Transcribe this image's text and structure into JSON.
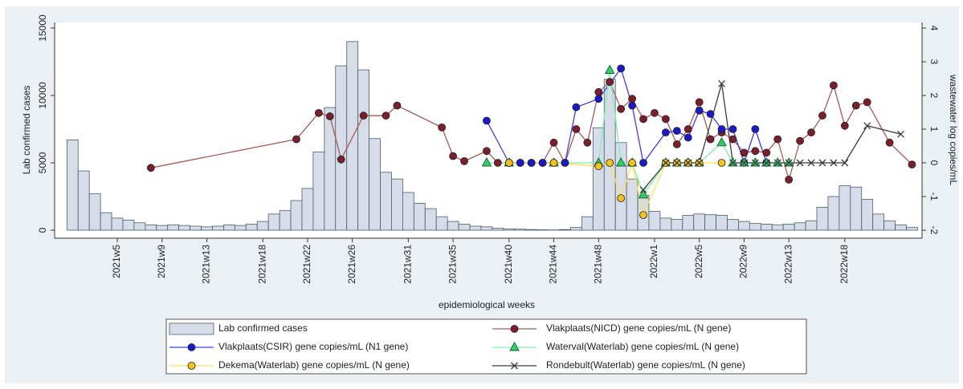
{
  "chart_data": {
    "type": "combo",
    "xlabel": "epidemiological weeks",
    "ylabel": "Lab confirmed cases",
    "y2label": "wastewater log copies/mL",
    "xlim": [
      -0.6,
      76.9
    ],
    "xticks": [
      {
        "value": 5,
        "label": "2021w5"
      },
      {
        "value": 9,
        "label": "2021w9"
      },
      {
        "value": 13,
        "label": "2021w13"
      },
      {
        "value": 18,
        "label": "2021w18"
      },
      {
        "value": 22,
        "label": "2021w22"
      },
      {
        "value": 26,
        "label": "2021w26"
      },
      {
        "value": 31,
        "label": "2021w31"
      },
      {
        "value": 35,
        "label": "2021w35"
      },
      {
        "value": 40,
        "label": "2021w40"
      },
      {
        "value": 44,
        "label": "2021w44"
      },
      {
        "value": 48,
        "label": "2021w48"
      },
      {
        "value": 53,
        "label": "2022w1"
      },
      {
        "value": 57,
        "label": "2022w5"
      },
      {
        "value": 61,
        "label": "2022w9"
      },
      {
        "value": 65,
        "label": "2022w13"
      },
      {
        "value": 70,
        "label": "2022w18"
      }
    ],
    "ylim": [
      0,
      15000
    ],
    "yticks": [
      0,
      5000,
      10000,
      15000
    ],
    "y2lim": [
      -2,
      4
    ],
    "y2ticks": [
      -2,
      -1,
      0,
      1,
      2,
      3,
      4
    ],
    "series": [
      {
        "name": "Lab confirmed cases",
        "type": "bar",
        "color": "#d6dde8",
        "edge_color": "#4d5b6b",
        "x": [
          1,
          2,
          3,
          4,
          5,
          6,
          7,
          8,
          9,
          10,
          11,
          12,
          13,
          14,
          15,
          16,
          17,
          18,
          19,
          20,
          21,
          22,
          23,
          24,
          25,
          26,
          27,
          28,
          29,
          30,
          31,
          32,
          33,
          34,
          35,
          36,
          37,
          38,
          39,
          40,
          41,
          42,
          43,
          44,
          45,
          46,
          47,
          48,
          49,
          50,
          51,
          52,
          53,
          54,
          55,
          56,
          57,
          58,
          59,
          60,
          61,
          62,
          63,
          64,
          65,
          66,
          67,
          68,
          69,
          70,
          71,
          72,
          73,
          74,
          75,
          76
        ],
        "values": [
          6700,
          4400,
          2700,
          1300,
          900,
          750,
          550,
          400,
          350,
          400,
          350,
          300,
          250,
          300,
          400,
          350,
          450,
          650,
          1200,
          1450,
          2200,
          3100,
          5800,
          9100,
          12200,
          14000,
          11900,
          6800,
          4300,
          3800,
          2800,
          2000,
          1600,
          1000,
          650,
          450,
          300,
          250,
          150,
          100,
          80,
          50,
          30,
          20,
          50,
          200,
          1000,
          7600,
          11200,
          6500,
          3800,
          2600,
          1400,
          900,
          800,
          1100,
          1200,
          1150,
          1100,
          800,
          650,
          500,
          450,
          400,
          450,
          550,
          700,
          1700,
          2500,
          3300,
          3200,
          2300,
          1200,
          700,
          400,
          200
        ]
      },
      {
        "name": "Vlakplaats(NICD) gene copies/mL (N gene)",
        "type": "line",
        "axis": "y2",
        "color": "#a65a58",
        "marker": "circle",
        "marker_color": "#7b1f2c",
        "x": [
          8,
          21,
          23,
          24,
          25,
          27,
          29,
          30,
          34,
          35,
          36,
          38,
          39,
          40,
          41,
          42,
          43,
          44,
          45,
          46,
          47,
          48,
          49,
          50,
          51,
          52,
          53,
          54,
          55,
          56,
          57,
          58,
          59,
          60,
          61,
          62,
          63,
          64,
          65,
          66,
          67,
          68,
          69,
          70,
          71,
          72,
          74,
          76
        ],
        "values": [
          -0.15,
          0.7,
          1.48,
          1.38,
          0.1,
          1.4,
          1.4,
          1.7,
          1.05,
          0.2,
          0.05,
          0.35,
          0,
          0,
          0,
          0,
          0,
          0.6,
          0,
          1.0,
          0.6,
          2.1,
          2.4,
          1.6,
          1.9,
          1.3,
          1.48,
          1.3,
          0.55,
          1.0,
          1.8,
          0.7,
          0.9,
          0.7,
          0.3,
          0.35,
          0.3,
          0.7,
          -0.5,
          0.65,
          0.9,
          1.4,
          2.3,
          1.1,
          1.7,
          1.8,
          0.6,
          -0.05
        ]
      },
      {
        "name": "Vlakplaats(CSIR) gene copies/mL (N1 gene)",
        "type": "line",
        "axis": "y2",
        "color": "#3c3cf0",
        "marker": "circle",
        "marker_color": "#1a1ac8",
        "x": [
          38,
          40,
          41,
          42,
          43,
          44,
          45,
          46,
          48,
          50,
          51,
          52,
          54,
          55,
          56,
          57,
          58,
          59,
          60,
          61,
          62,
          63
        ],
        "values": [
          1.25,
          0,
          0,
          0,
          0,
          0,
          0,
          1.65,
          1.9,
          2.8,
          1.7,
          0,
          0.9,
          0.95,
          0.75,
          1.55,
          1.45,
          1.0,
          1.0,
          0,
          1.0,
          0
        ]
      },
      {
        "name": "Waterval(Waterlab) gene copies/mL (N gene)",
        "type": "line",
        "axis": "y2",
        "color": "#7df0b0",
        "marker": "triangle",
        "marker_color": "#2fcf6a",
        "x": [
          38,
          40,
          44,
          48,
          49,
          50,
          51,
          52,
          54,
          55,
          56,
          57,
          59,
          60,
          61,
          62,
          63,
          64,
          65
        ],
        "values": [
          0,
          0,
          0,
          0,
          2.75,
          0,
          0,
          -0.95,
          0,
          0,
          0,
          0,
          0.6,
          0,
          0,
          0,
          0,
          0,
          0
        ]
      },
      {
        "name": "Dekema(Waterlab) gene copies/mL (N gene)",
        "type": "line",
        "axis": "y2",
        "color": "#ffe150",
        "marker": "circle",
        "marker_color": "#f2c21e",
        "x": [
          40,
          44,
          48,
          49,
          50,
          51,
          52,
          54,
          55,
          56,
          57,
          59
        ],
        "values": [
          0,
          0,
          -0.1,
          0,
          -1.05,
          0,
          -1.55,
          0,
          0,
          0,
          0,
          0
        ]
      },
      {
        "name": "Rondebult(Waterlab) gene copies/mL (N gene)",
        "type": "line",
        "axis": "y2",
        "color": "#3a3a3a",
        "marker": "x",
        "marker_color": "#3a3a3a",
        "x": [
          52,
          54,
          55,
          56,
          57,
          59,
          60,
          61,
          62,
          63,
          64,
          65,
          66,
          67,
          68,
          69,
          70,
          72,
          75
        ],
        "values": [
          -0.8,
          0,
          0,
          0,
          0,
          2.35,
          0,
          0,
          0,
          0,
          0,
          0,
          0,
          0,
          0,
          0,
          0,
          1.1,
          0.85
        ]
      }
    ]
  }
}
